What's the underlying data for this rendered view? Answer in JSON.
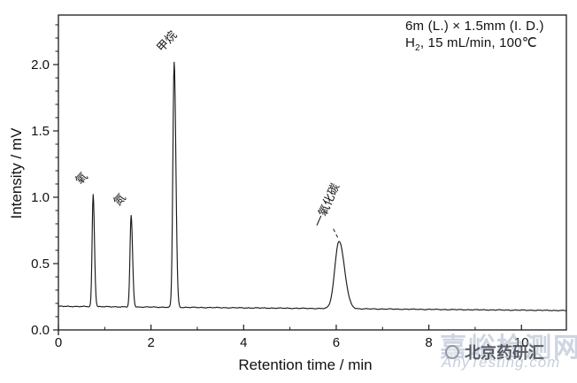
{
  "watermark": {
    "site_name": "嘉峪检测网",
    "site_url": "AnyTesting.com"
  },
  "branding": {
    "channel": "北京药研汇"
  },
  "chart_data": {
    "type": "line",
    "title": "",
    "xlabel": "Retention time / min",
    "ylabel": "Intensity / mV",
    "xlim": [
      0,
      10.97
    ],
    "ylim": [
      0,
      2.37
    ],
    "x_ticks": [
      0,
      2,
      4,
      6,
      8,
      10
    ],
    "x_minor_ticks": [
      1,
      3,
      5,
      7,
      9,
      11
    ],
    "y_ticks": [
      "0.0",
      "0.5",
      "1.0",
      "1.5",
      "2.0"
    ],
    "y_minor_step": 0.1,
    "grid": false,
    "legend": null,
    "line_color": "#1a1a1a",
    "bg_color": "#ffffff",
    "annotation": {
      "line1": "6m (L.) × 1.5mm (I. D.)",
      "line2_parts": {
        "base": "H",
        "sub": "2",
        "rest": ", 15 mL/min, 100℃"
      }
    },
    "baseline": {
      "start_mV": 0.178,
      "end_mV": 0.146,
      "noise_mV": 0.003
    },
    "peaks": [
      {
        "name": "氧",
        "t_min": 0.75,
        "apex_mV": 1.02,
        "sigma_min": 0.022,
        "label_rotation_deg": -48,
        "leader": false
      },
      {
        "name": "氮",
        "t_min": 1.57,
        "apex_mV": 0.86,
        "sigma_min": 0.024,
        "label_rotation_deg": -48,
        "leader": false
      },
      {
        "name": "甲烷",
        "t_min": 2.5,
        "apex_mV": 2.02,
        "sigma_min": 0.028,
        "label_rotation_deg": -48,
        "leader": false
      },
      {
        "name": "一氧化碳",
        "t_min": 6.06,
        "apex_mV": 0.67,
        "sigma_min": 0.09,
        "label_rotation_deg": -66,
        "leader": true
      }
    ]
  }
}
